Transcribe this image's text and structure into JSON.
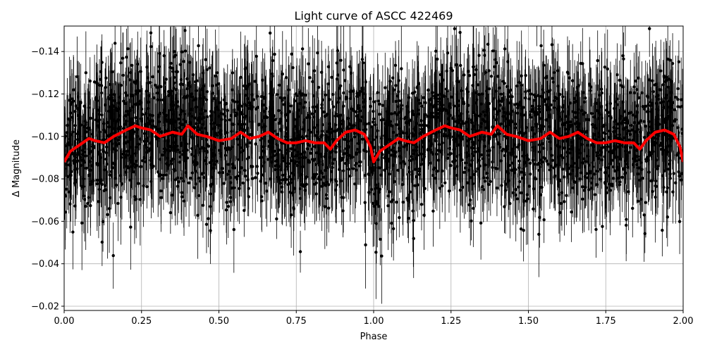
{
  "chart_data": {
    "type": "scatter",
    "title": "Light curve of ASCC 422469",
    "xlabel": "Phase",
    "ylabel": "Δ Magnitude",
    "xlim": [
      0.0,
      2.0
    ],
    "ylim": [
      -0.018,
      -0.152
    ],
    "y_axis_inverted": true,
    "grid": true,
    "x_ticks": [
      "0.00",
      "0.25",
      "0.50",
      "0.75",
      "1.00",
      "1.25",
      "1.50",
      "1.75",
      "2.00"
    ],
    "y_ticks": [
      "−0.14",
      "−0.12",
      "−0.10",
      "−0.08",
      "−0.06",
      "−0.04",
      "−0.02"
    ],
    "series": [
      {
        "kind": "points_with_errorbars",
        "color": "#000000",
        "scatter_center": -0.095,
        "scatter_sigma": 0.022,
        "typical_error": 0.015,
        "points_per_unit_phase": 1400
      },
      {
        "kind": "binned_curve",
        "color": "#ff0000",
        "phase": [
          0.0,
          0.02,
          0.05,
          0.08,
          0.1,
          0.13,
          0.16,
          0.2,
          0.23,
          0.25,
          0.28,
          0.31,
          0.35,
          0.38,
          0.4,
          0.43,
          0.46,
          0.5,
          0.54,
          0.57,
          0.6,
          0.63,
          0.66,
          0.69,
          0.72,
          0.75,
          0.78,
          0.81,
          0.84,
          0.86,
          0.88,
          0.91,
          0.94,
          0.97,
          0.99,
          1.0
        ],
        "delta_magnitude": [
          -0.088,
          -0.093,
          -0.096,
          -0.099,
          -0.098,
          -0.097,
          -0.1,
          -0.103,
          -0.105,
          -0.104,
          -0.103,
          -0.1,
          -0.102,
          -0.101,
          -0.105,
          -0.101,
          -0.1,
          -0.098,
          -0.099,
          -0.102,
          -0.099,
          -0.1,
          -0.102,
          -0.099,
          -0.097,
          -0.097,
          -0.098,
          -0.097,
          -0.097,
          -0.094,
          -0.098,
          -0.102,
          -0.103,
          -0.101,
          -0.095,
          -0.088
        ]
      }
    ]
  }
}
